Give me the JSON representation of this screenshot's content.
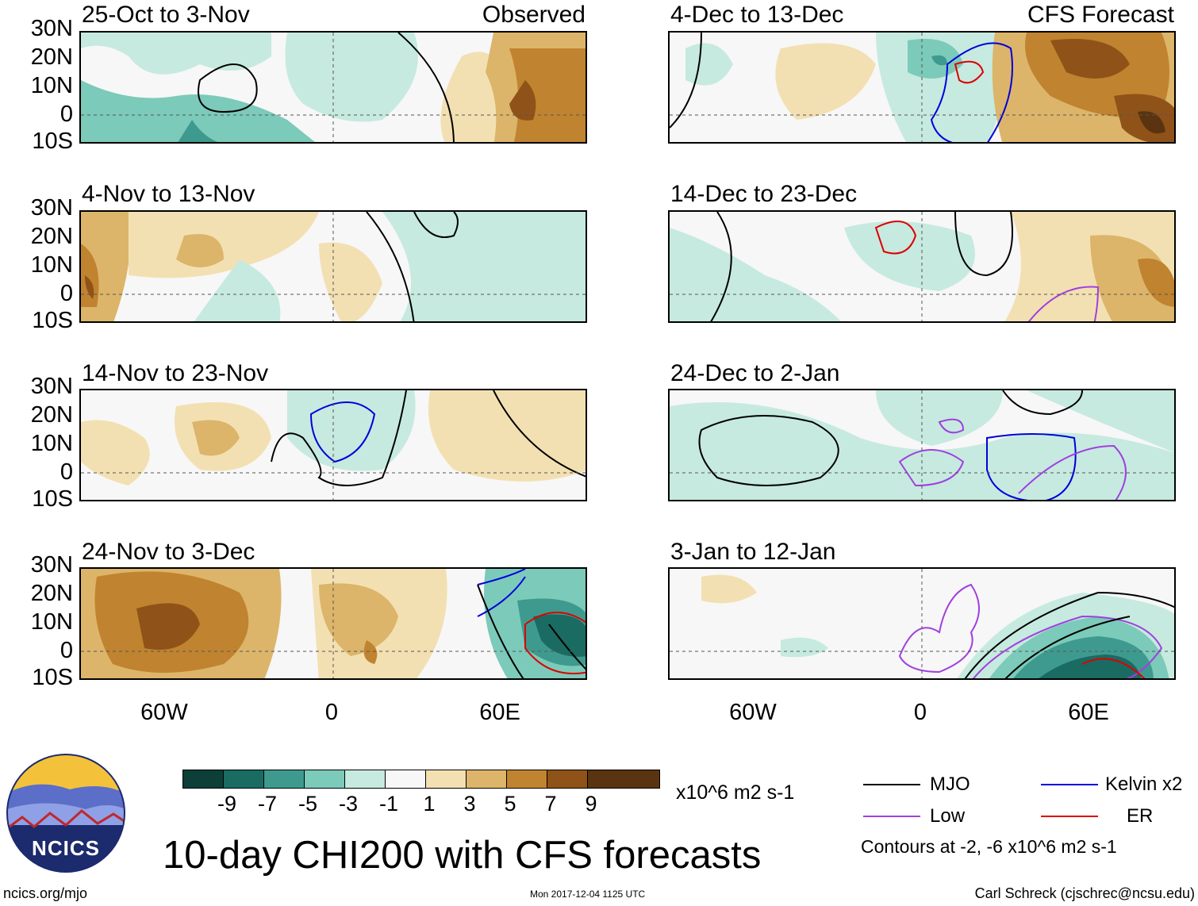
{
  "title": "10-day CHI200 with CFS forecasts",
  "panels": {
    "left": [
      {
        "period": "25-Oct to 3-Nov",
        "tag": "Observed"
      },
      {
        "period": "4-Nov to 13-Nov"
      },
      {
        "period": "14-Nov to 23-Nov"
      },
      {
        "period": "24-Nov to 3-Dec"
      }
    ],
    "right": [
      {
        "period": "4-Dec to 13-Dec",
        "tag": "CFS Forecast"
      },
      {
        "period": "14-Dec to 23-Dec"
      },
      {
        "period": "24-Dec to 2-Jan"
      },
      {
        "period": "3-Jan to 12-Jan"
      }
    ]
  },
  "axes": {
    "lat_labels": [
      "30N",
      "20N",
      "10N",
      "0",
      "10S"
    ],
    "lon_labels": [
      "60W",
      "0",
      "60E"
    ]
  },
  "colorbar": {
    "units": "x10^6 m2 s-1",
    "ticks": [
      "-9",
      "-7",
      "-5",
      "-3",
      "-1",
      "1",
      "3",
      "5",
      "7",
      "9"
    ],
    "colors": [
      "#0b3f38",
      "#1a6b62",
      "#3e9a8e",
      "#7ccab9",
      "#c6eadf",
      "#f7f7f7",
      "#f3e0b2",
      "#dcb56a",
      "#c0832f",
      "#8f5218",
      "#5a3410"
    ]
  },
  "legend": {
    "items": [
      {
        "label": "MJO",
        "color": "#000000"
      },
      {
        "label": "Kelvin x2",
        "color": "#0000dd"
      },
      {
        "label": "Low",
        "color": "#a040e0"
      },
      {
        "label": "ER",
        "color": "#dd0000"
      }
    ],
    "note": "Contours at -2, -6 x10^6 m2 s-1"
  },
  "logo": {
    "text": "NCICS"
  },
  "footer": {
    "url": "ncics.org/mjo",
    "timestamp": "Mon 2017-12-04 1125 UTC",
    "credit": "Carl Schreck (cjschrec@ncsu.edu)"
  }
}
